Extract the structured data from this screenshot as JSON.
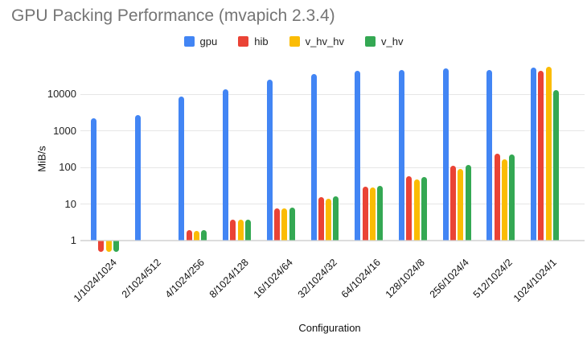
{
  "title": "GPU Packing Performance (mvapich 2.3.4)",
  "chart_data": {
    "type": "bar",
    "title": "GPU Packing Performance (mvapich 2.3.4)",
    "xlabel": "Configuration",
    "ylabel": "MiB/s",
    "yscale": "log",
    "ylim": [
      0.5,
      60000
    ],
    "yticks": [
      1,
      10,
      100,
      1000,
      10000
    ],
    "grid": true,
    "legend_position": "top",
    "categories": [
      "1/1024/1024",
      "2/1024/512",
      "4/1024/256",
      "8/1024/128",
      "16/1024/64",
      "32/1024/32",
      "64/1024/16",
      "128/1024/8",
      "256/1024/4",
      "512/1024/2",
      "1024/1024/1"
    ],
    "series": [
      {
        "name": "gpu",
        "color": "#4285F4",
        "values": [
          2200,
          2700,
          8600,
          13500,
          25500,
          36000,
          43000,
          45000,
          51000,
          46000,
          52000
        ]
      },
      {
        "name": "hib",
        "color": "#EA4335",
        "values": [
          0.5,
          null,
          1.9,
          3.8,
          7.6,
          15,
          30,
          56,
          110,
          240,
          44000
        ]
      },
      {
        "name": "v_hv_hv",
        "color": "#FBBC04",
        "values": [
          0.5,
          null,
          1.8,
          3.7,
          7.4,
          14,
          28,
          47,
          92,
          165,
          55000
        ]
      },
      {
        "name": "v_hv",
        "color": "#34A853",
        "values": [
          0.5,
          null,
          1.9,
          3.8,
          8.0,
          16,
          31,
          55,
          115,
          220,
          13000
        ]
      }
    ]
  },
  "colors": {
    "title_gray": "#757575",
    "gridline": "#e6e6e6",
    "baseline": "#dcdcdc"
  }
}
